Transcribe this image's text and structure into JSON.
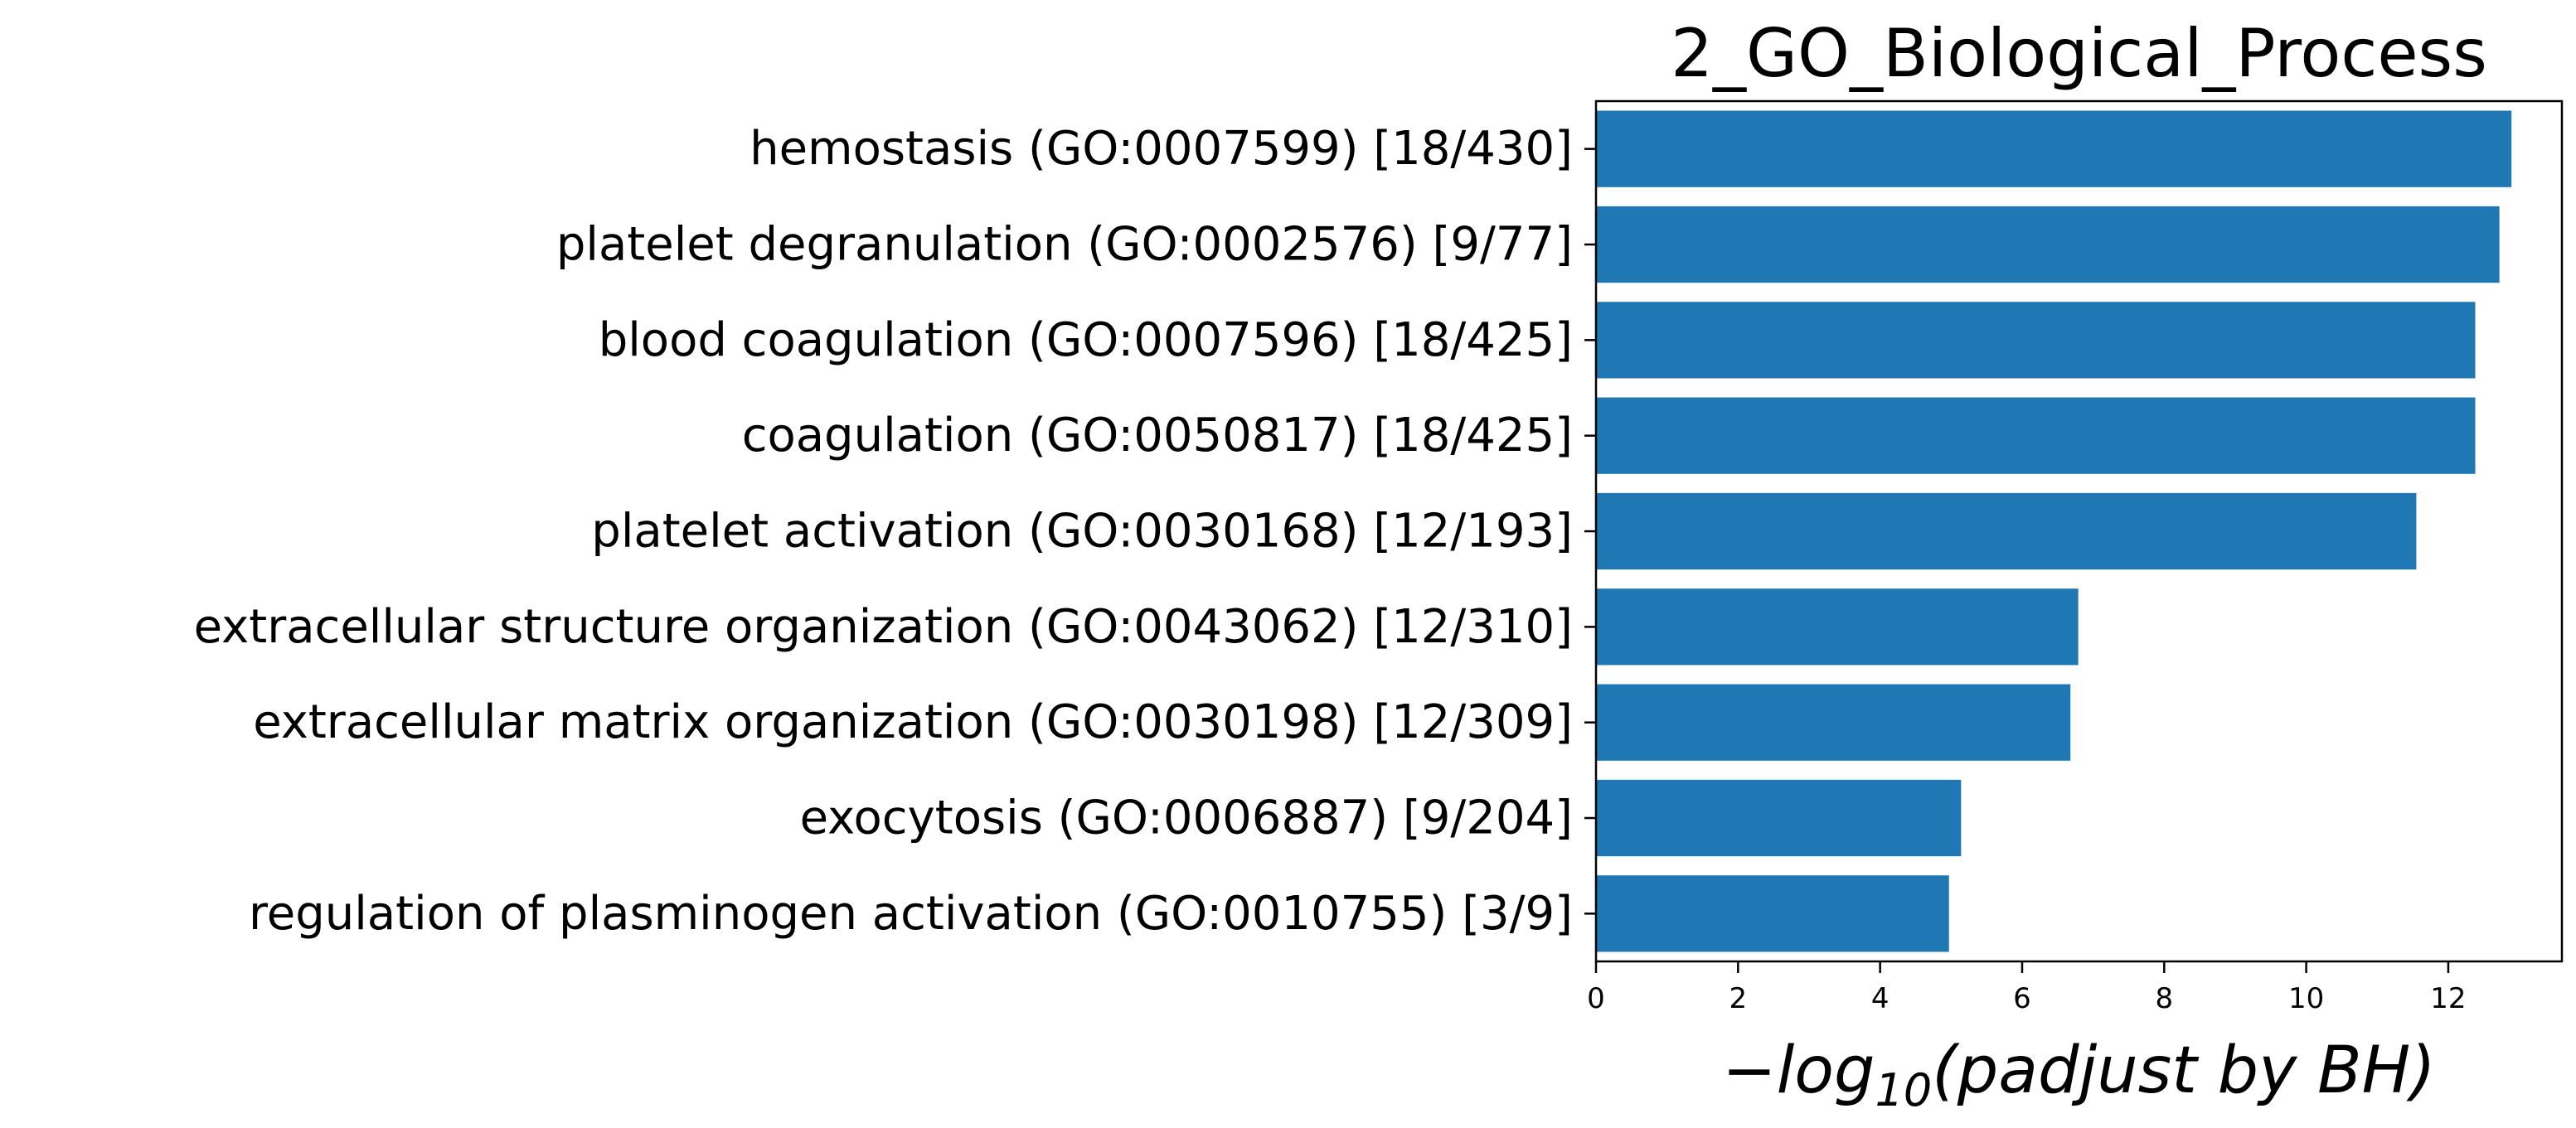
{
  "chart_data": {
    "type": "bar",
    "orientation": "horizontal",
    "title": "2_GO_Biological_Process",
    "xlabel": {
      "prefix": "−log",
      "subscript": "10",
      "suffix": "(padjust by BH)"
    },
    "ylabel": "",
    "xlim": [
      0,
      13.6
    ],
    "xticks": [
      0,
      2,
      4,
      6,
      8,
      10,
      12
    ],
    "grid": false,
    "legend": "none",
    "bar_color": "#1f77b4",
    "categories": [
      "hemostasis (GO:0007599) [18/430]",
      "platelet degranulation (GO:0002576) [9/77]",
      "blood coagulation (GO:0007596) [18/425]",
      "coagulation (GO:0050817) [18/425]",
      "platelet activation (GO:0030168) [12/193]",
      "extracellular structure organization (GO:0043062) [12/310]",
      "extracellular matrix organization (GO:0030198) [12/309]",
      "exocytosis (GO:0006887) [9/204]",
      "regulation of plasminogen activation (GO:0010755) [3/9]"
    ],
    "values": [
      12.89,
      12.72,
      12.38,
      12.38,
      11.55,
      6.79,
      6.68,
      5.14,
      4.97
    ]
  }
}
